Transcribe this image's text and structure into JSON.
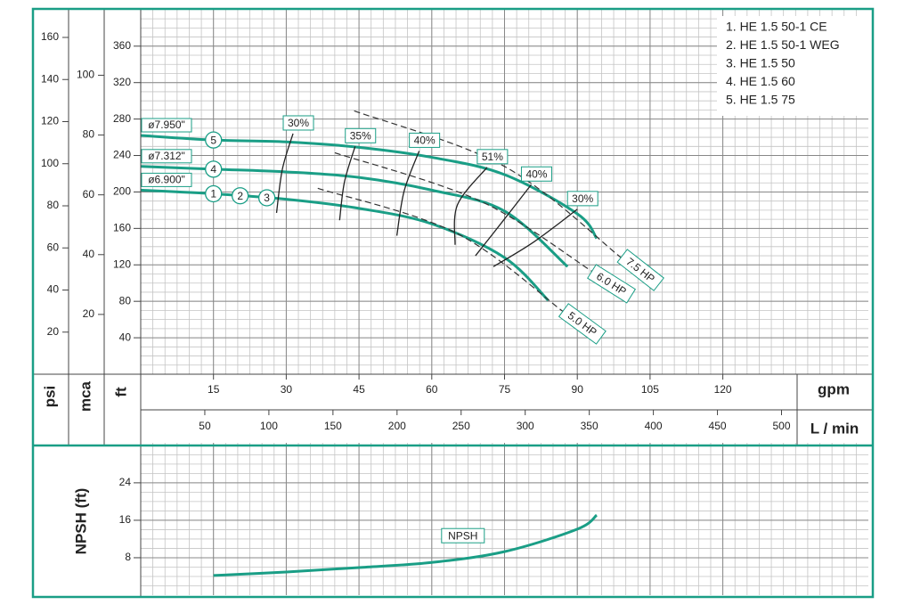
{
  "chart_data": [
    {
      "type": "line",
      "xlabel": "gpm",
      "x2label": "L / min",
      "ylabel": "ft",
      "psi_label": "psi",
      "mca_label": "mca",
      "xlim": [
        0,
        150
      ],
      "xticks": [
        15,
        30,
        45,
        60,
        75,
        90,
        105,
        120
      ],
      "x2lim": [
        0,
        567.75
      ],
      "x2ticks": [
        50,
        100,
        150,
        200,
        250,
        300,
        350,
        400,
        450,
        500
      ],
      "ylim": [
        0,
        395
      ],
      "yticks": [
        40,
        80,
        120,
        160,
        200,
        240,
        280,
        320,
        360
      ],
      "psi_lim": [
        0,
        171
      ],
      "psi_ticks": [
        20,
        40,
        60,
        80,
        100,
        120,
        140,
        160
      ],
      "mca_lim": [
        0,
        120.4
      ],
      "mca_ticks": [
        20,
        40,
        60,
        80,
        100
      ],
      "grid": true,
      "minor_divisions": {
        "x": 6,
        "y": 4
      },
      "legend_position": "upper right",
      "legend_items": [
        "1. HE 1.5 50-1 CE",
        "2. HE 1.5 50-1 WEG",
        "3. HE 1.5 50",
        "4. HE 1.5 60",
        "5. HE 1.5 75"
      ],
      "series": [
        {
          "name": "ø7.950\"",
          "markers": [
            "5"
          ],
          "color": "#1a9e86",
          "x": [
            0,
            15,
            30,
            45,
            60,
            75,
            90,
            94
          ],
          "values": [
            262,
            257,
            255,
            249,
            238,
            219,
            176,
            149
          ]
        },
        {
          "name": "ø7.312\"",
          "markers": [
            "4"
          ],
          "color": "#1a9e86",
          "x": [
            0,
            15,
            30,
            45,
            60,
            75,
            88
          ],
          "values": [
            228,
            225,
            222,
            216,
            202,
            179,
            118
          ]
        },
        {
          "name": "ø6.900\"",
          "markers": [
            "1",
            "2",
            "3"
          ],
          "color": "#1a9e86",
          "x": [
            0,
            15,
            30,
            45,
            60,
            75,
            84
          ],
          "values": [
            202,
            198,
            192,
            182,
            165,
            128,
            81
          ]
        }
      ],
      "power_lines": [
        {
          "name": "7.5 HP",
          "x": [
            44,
            75,
            99
          ],
          "values": [
            289,
            228,
            128
          ]
        },
        {
          "name": "6.0 HP",
          "x": [
            40,
            70,
            93
          ],
          "values": [
            243,
            190,
            113
          ]
        },
        {
          "name": "5.0 HP",
          "x": [
            36.5,
            65,
            87
          ],
          "values": [
            204,
            155,
            69
          ]
        }
      ],
      "efficiency": [
        {
          "name": "30%",
          "x": [
            31.4,
            29.2,
            28
          ],
          "values": [
            264,
            225,
            177
          ]
        },
        {
          "name": "35%",
          "x": [
            44.2,
            42,
            41
          ],
          "values": [
            250,
            211,
            169
          ]
        },
        {
          "name": "40%",
          "x": [
            57.4,
            54.3,
            52.8
          ],
          "values": [
            245,
            201,
            152
          ]
        },
        {
          "name": "51%",
          "x": [
            71.4,
            65.3,
            64.8
          ],
          "values": [
            227,
            186,
            142
          ]
        },
        {
          "name": "40%",
          "x": [
            80.5,
            74.5,
            69
          ],
          "values": [
            208,
            167,
            130
          ]
        },
        {
          "name": "30%",
          "x": [
            90,
            81,
            72.7
          ],
          "values": [
            181,
            145,
            118
          ]
        }
      ]
    },
    {
      "type": "line",
      "ylabel": "NPSH (ft)",
      "xlim": [
        0,
        150
      ],
      "ylim": [
        0,
        31.4
      ],
      "yticks": [
        8,
        16,
        24
      ],
      "grid": true,
      "minor_divisions": {
        "x": 6,
        "y": 4
      },
      "series": [
        {
          "name": "NPSH",
          "color": "#1a9e86",
          "x": [
            15,
            30,
            45,
            60,
            75,
            90,
            94
          ],
          "values": [
            4.2,
            4.95,
            5.9,
            7,
            9.3,
            14.1,
            17.1
          ]
        }
      ]
    }
  ]
}
